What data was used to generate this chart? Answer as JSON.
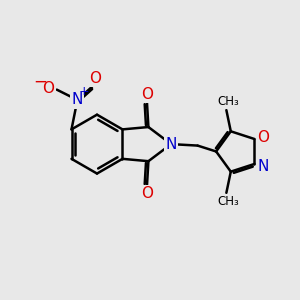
{
  "background_color": "#e8e8e8",
  "bond_color": "#000000",
  "atom_colors": {
    "N": "#0000cc",
    "O": "#dd0000",
    "C": "#000000"
  },
  "bond_width": 1.8,
  "figsize": [
    3.0,
    3.0
  ],
  "dpi": 100
}
